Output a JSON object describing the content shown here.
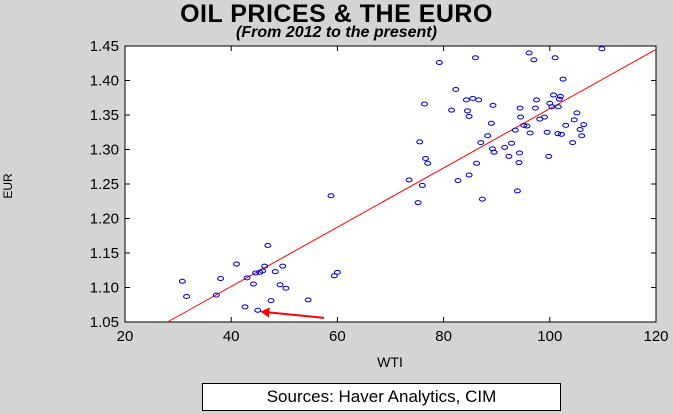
{
  "chart_data": {
    "type": "scatter",
    "title": "OIL PRICES & THE EURO",
    "subtitle": "(From 2012 to the present)",
    "xlabel": "WTI",
    "ylabel": "EUR",
    "xlim": [
      20,
      120
    ],
    "ylim": [
      1.05,
      1.45
    ],
    "xticks": [
      "20",
      "40",
      "60",
      "80",
      "100",
      "120"
    ],
    "yticks": [
      "1.05",
      "1.10",
      "1.15",
      "1.20",
      "1.25",
      "1.30",
      "1.35",
      "1.40",
      "1.45"
    ],
    "grid": false,
    "regression_line": {
      "x": [
        28,
        120
      ],
      "y": [
        1.05,
        1.445
      ]
    },
    "annotation": {
      "type": "arrow",
      "from": [
        57.5,
        1.056
      ],
      "to": [
        45.5,
        1.065
      ]
    },
    "points": [
      [
        30.8,
        1.109
      ],
      [
        31.6,
        1.087
      ],
      [
        37.2,
        1.089
      ],
      [
        38.0,
        1.113
      ],
      [
        41.0,
        1.134
      ],
      [
        42.6,
        1.072
      ],
      [
        43.0,
        1.114
      ],
      [
        44.2,
        1.105
      ],
      [
        44.6,
        1.121
      ],
      [
        45.0,
        1.067
      ],
      [
        45.4,
        1.122
      ],
      [
        45.9,
        1.124
      ],
      [
        46.3,
        1.131
      ],
      [
        46.9,
        1.161
      ],
      [
        47.5,
        1.081
      ],
      [
        48.3,
        1.123
      ],
      [
        49.2,
        1.104
      ],
      [
        49.7,
        1.131
      ],
      [
        50.3,
        1.099
      ],
      [
        54.5,
        1.082
      ],
      [
        58.8,
        1.233
      ],
      [
        59.4,
        1.117
      ],
      [
        60.0,
        1.122
      ],
      [
        73.5,
        1.256
      ],
      [
        75.2,
        1.223
      ],
      [
        75.5,
        1.311
      ],
      [
        76.0,
        1.248
      ],
      [
        76.4,
        1.366
      ],
      [
        76.6,
        1.287
      ],
      [
        77.0,
        1.28
      ],
      [
        79.2,
        1.426
      ],
      [
        81.5,
        1.357
      ],
      [
        82.3,
        1.387
      ],
      [
        82.7,
        1.255
      ],
      [
        84.3,
        1.372
      ],
      [
        84.5,
        1.356
      ],
      [
        84.8,
        1.348
      ],
      [
        84.8,
        1.263
      ],
      [
        85.5,
        1.374
      ],
      [
        86.6,
        1.372
      ],
      [
        86.0,
        1.433
      ],
      [
        86.2,
        1.28
      ],
      [
        87.0,
        1.31
      ],
      [
        87.3,
        1.228
      ],
      [
        88.3,
        1.32
      ],
      [
        89.2,
        1.301
      ],
      [
        89.5,
        1.296
      ],
      [
        89.0,
        1.338
      ],
      [
        89.3,
        1.364
      ],
      [
        91.5,
        1.303
      ],
      [
        92.3,
        1.29
      ],
      [
        92.8,
        1.309
      ],
      [
        93.5,
        1.328
      ],
      [
        93.9,
        1.24
      ],
      [
        94.2,
        1.281
      ],
      [
        94.3,
        1.295
      ],
      [
        94.5,
        1.347
      ],
      [
        94.4,
        1.36
      ],
      [
        95.1,
        1.335
      ],
      [
        95.7,
        1.334
      ],
      [
        96.3,
        1.324
      ],
      [
        96.1,
        1.44
      ],
      [
        97.0,
        1.43
      ],
      [
        97.5,
        1.372
      ],
      [
        97.3,
        1.36
      ],
      [
        98.1,
        1.344
      ],
      [
        99.0,
        1.347
      ],
      [
        99.5,
        1.325
      ],
      [
        99.8,
        1.29
      ],
      [
        100.0,
        1.367
      ],
      [
        100.4,
        1.362
      ],
      [
        100.7,
        1.379
      ],
      [
        101.0,
        1.433
      ],
      [
        101.6,
        1.362
      ],
      [
        101.8,
        1.373
      ],
      [
        102.0,
        1.377
      ],
      [
        101.5,
        1.323
      ],
      [
        102.2,
        1.322
      ],
      [
        102.5,
        1.402
      ],
      [
        103.0,
        1.335
      ],
      [
        104.3,
        1.31
      ],
      [
        104.6,
        1.343
      ],
      [
        105.1,
        1.353
      ],
      [
        105.7,
        1.329
      ],
      [
        106.0,
        1.32
      ],
      [
        106.4,
        1.336
      ],
      [
        109.8,
        1.446
      ]
    ]
  },
  "source_text": "Sources:  Haver Analytics, CIM",
  "colors": {
    "marker": "#0000c8",
    "regression": "#ff0000",
    "arrow": "#ff0000",
    "plot_bg": "#ffffff",
    "page_bg": "#d4d4d4"
  }
}
